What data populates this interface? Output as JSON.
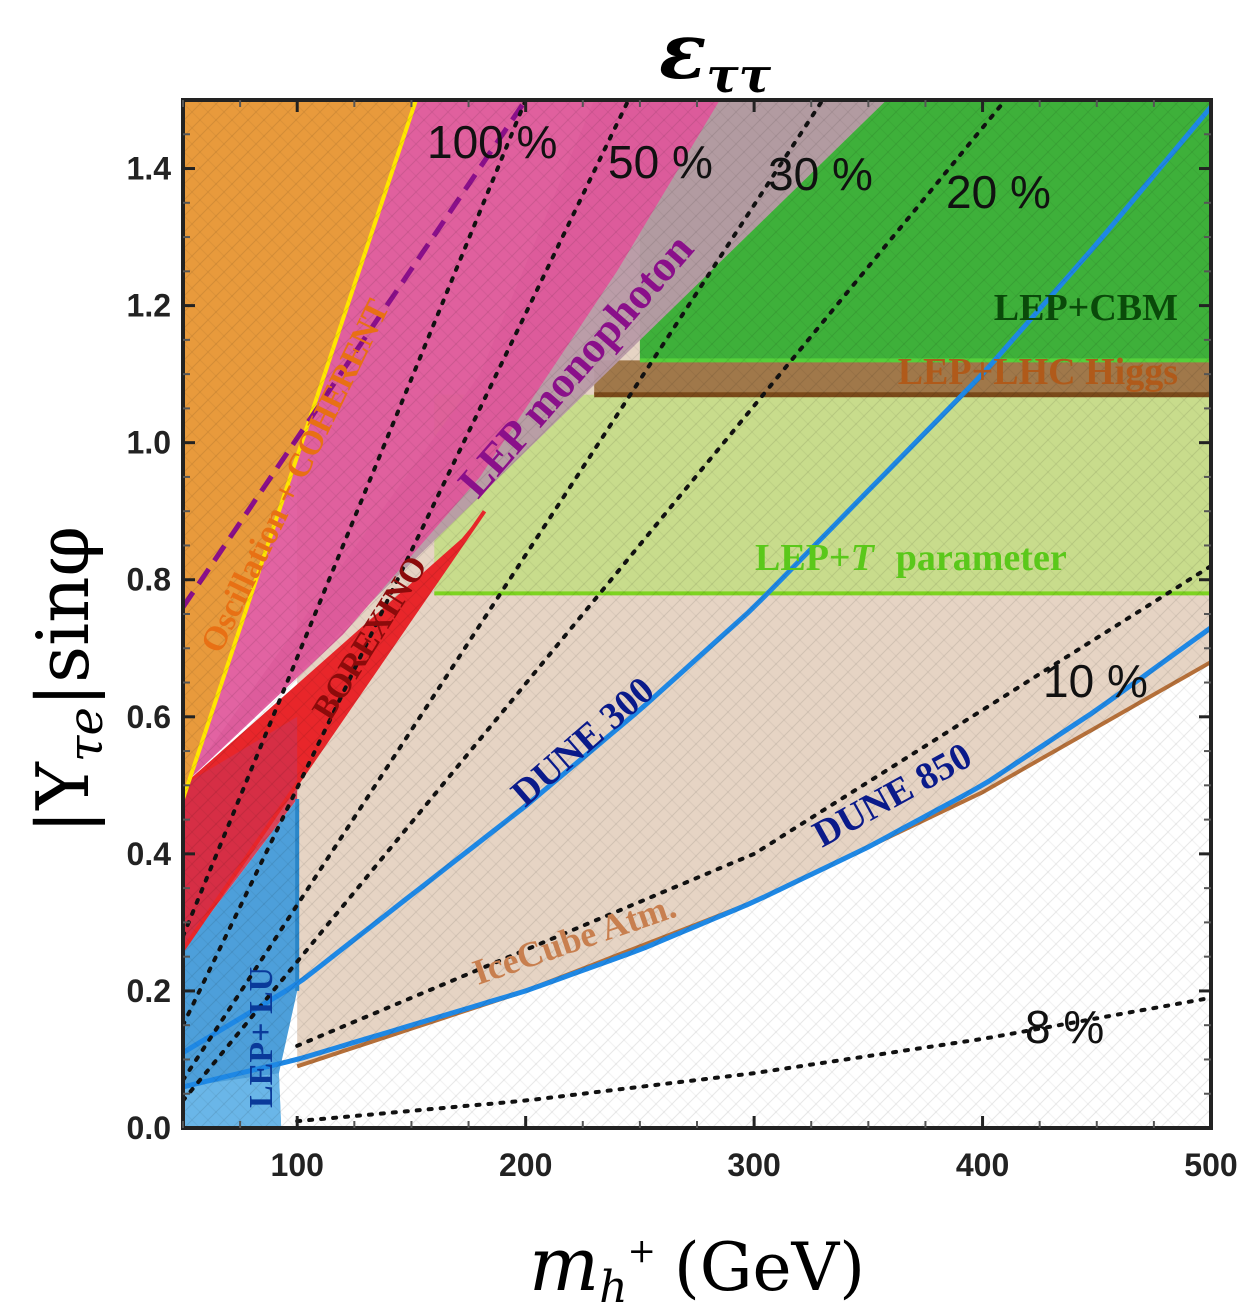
{
  "chart_data": {
    "type": "area",
    "title": "ε_ττ",
    "title_main": "ε",
    "title_sub": "ττ",
    "xlabel": "m_{h+} (GeV)",
    "xlabel_main": "m",
    "xlabel_sub": "h",
    "xlabel_sup": "+",
    "xlabel_unit": "(GeV)",
    "ylabel": "|Y_τe| sinφ",
    "ylabel_pre": "|Y",
    "ylabel_sub": "τe",
    "ylabel_post": "|sinφ",
    "xlim": [
      50,
      500
    ],
    "ylim": [
      0,
      1.5
    ],
    "xticks": [
      100,
      200,
      300,
      400,
      500
    ],
    "xtick_labels": [
      "100",
      "200",
      "300",
      "400",
      "500"
    ],
    "yticks": [
      0.0,
      0.2,
      0.4,
      0.6,
      0.8,
      1.0,
      1.2,
      1.4
    ],
    "ytick_labels": [
      "0.0",
      "0.2",
      "0.4",
      "0.6",
      "0.8",
      "1.0",
      "1.2",
      "1.4"
    ],
    "colors": {
      "oscillation": "#e89a3c",
      "oscillation_line": "#ffe600",
      "borexino": "#e8262a",
      "lep_monophoton": "#e0569a",
      "lep_monophoton_gray": "#b89aa6",
      "lep_mono_line": "#8a0f8a",
      "lep_cbm": "#3eb03a",
      "lep_lhc_higgs": "#a0784a",
      "lep_t": "#c8dc8c",
      "lep_t_line": "#7dd321",
      "icecube": "#e6d4c4",
      "icecube_line": "#b5703a",
      "lep_lu": "#3a95d6",
      "dune": "#1e88e5",
      "contour": "#111111",
      "label_dune": "#0a1a8a",
      "label_cbm": "#0a4a0a",
      "label_higgs": "#b05a1a",
      "label_t": "#5ac81a",
      "label_icecube": "#c87f4f",
      "label_borexino": "#8c0b0b",
      "label_lu": "#0a3a9a",
      "label_oscillation": "#e87014"
    },
    "series": [
      {
        "name": "Oscillation + COHERENT",
        "x": [
          50,
          152,
          50
        ],
        "y": [
          0.48,
          1.5,
          1.5
        ]
      },
      {
        "name": "BOREXINO",
        "x": [
          50,
          182,
          50
        ],
        "y": [
          0.26,
          0.9,
          1.5
        ]
      },
      {
        "name": "LEP monophoton",
        "x": [
          50,
          358,
          50
        ],
        "y": [
          0.5,
          1.5,
          1.5
        ]
      },
      {
        "name": "LEP+CBM",
        "x": [
          230,
          500,
          500,
          230
        ],
        "y": [
          1.12,
          1.12,
          1.5,
          1.5
        ]
      },
      {
        "name": "LEP+LHC Higgs",
        "x": [
          230,
          500,
          500,
          230
        ],
        "y": [
          1.07,
          1.07,
          1.12,
          1.12
        ]
      },
      {
        "name": "LEP+T parameter",
        "x": [
          160,
          500,
          500,
          160
        ],
        "y": [
          0.78,
          0.78,
          1.07,
          1.07
        ]
      },
      {
        "name": "IceCube Atm.",
        "x": [
          100,
          200,
          300,
          400,
          500
        ],
        "y": [
          0.09,
          0.2,
          0.33,
          0.49,
          0.68
        ]
      },
      {
        "name": "LEP+LU",
        "x": [
          50,
          100,
          100,
          92,
          50
        ],
        "y": [
          0.0,
          0.0,
          0.5,
          0.0,
          0.48
        ]
      },
      {
        "name": "DUNE 300",
        "x": [
          50,
          100,
          150,
          200,
          250,
          300,
          350,
          400,
          450,
          500
        ],
        "y": [
          0.11,
          0.21,
          0.34,
          0.47,
          0.61,
          0.76,
          0.93,
          1.1,
          1.29,
          1.49
        ]
      },
      {
        "name": "DUNE 850",
        "x": [
          50,
          100,
          150,
          200,
          250,
          300,
          350,
          400,
          450,
          500
        ],
        "y": [
          0.06,
          0.1,
          0.15,
          0.2,
          0.26,
          0.33,
          0.41,
          0.5,
          0.61,
          0.73
        ]
      },
      {
        "name": "100 %",
        "x": [
          50,
          200
        ],
        "y": [
          0.28,
          1.5
        ]
      },
      {
        "name": "50 %",
        "x": [
          50,
          245
        ],
        "y": [
          0.15,
          1.5
        ]
      },
      {
        "name": "30 %",
        "x": [
          50,
          330
        ],
        "y": [
          0.07,
          1.5
        ]
      },
      {
        "name": "20 %",
        "x": [
          50,
          410
        ],
        "y": [
          0.04,
          1.5
        ]
      },
      {
        "name": "10 %",
        "x": [
          100,
          300,
          500
        ],
        "y": [
          0.12,
          0.4,
          0.82
        ]
      },
      {
        "name": "8 %",
        "x": [
          100,
          200,
          300,
          400,
          500
        ],
        "y": [
          0.01,
          0.04,
          0.08,
          0.13,
          0.19
        ]
      }
    ],
    "labels": {
      "oscillation": "Oscillation + COHERENT",
      "borexino": "BOREXINO",
      "lep_monophoton": "LEP monophoton",
      "lep_cbm": "LEP+CBM",
      "lep_lhc_higgs": "LEP+LHC Higgs",
      "lep_t_prefix": "LEP+",
      "lep_t_T": "T",
      "lep_t_suffix": "parameter",
      "icecube": "IceCube Atm.",
      "lep_lu": "LEP+ LU",
      "dune300": "DUNE 300",
      "dune850": "DUNE 850",
      "p100": "100 %",
      "p50": "50 %",
      "p30": "30 %",
      "p20": "20 %",
      "p10": "10 %",
      "p8": "8 %"
    }
  }
}
